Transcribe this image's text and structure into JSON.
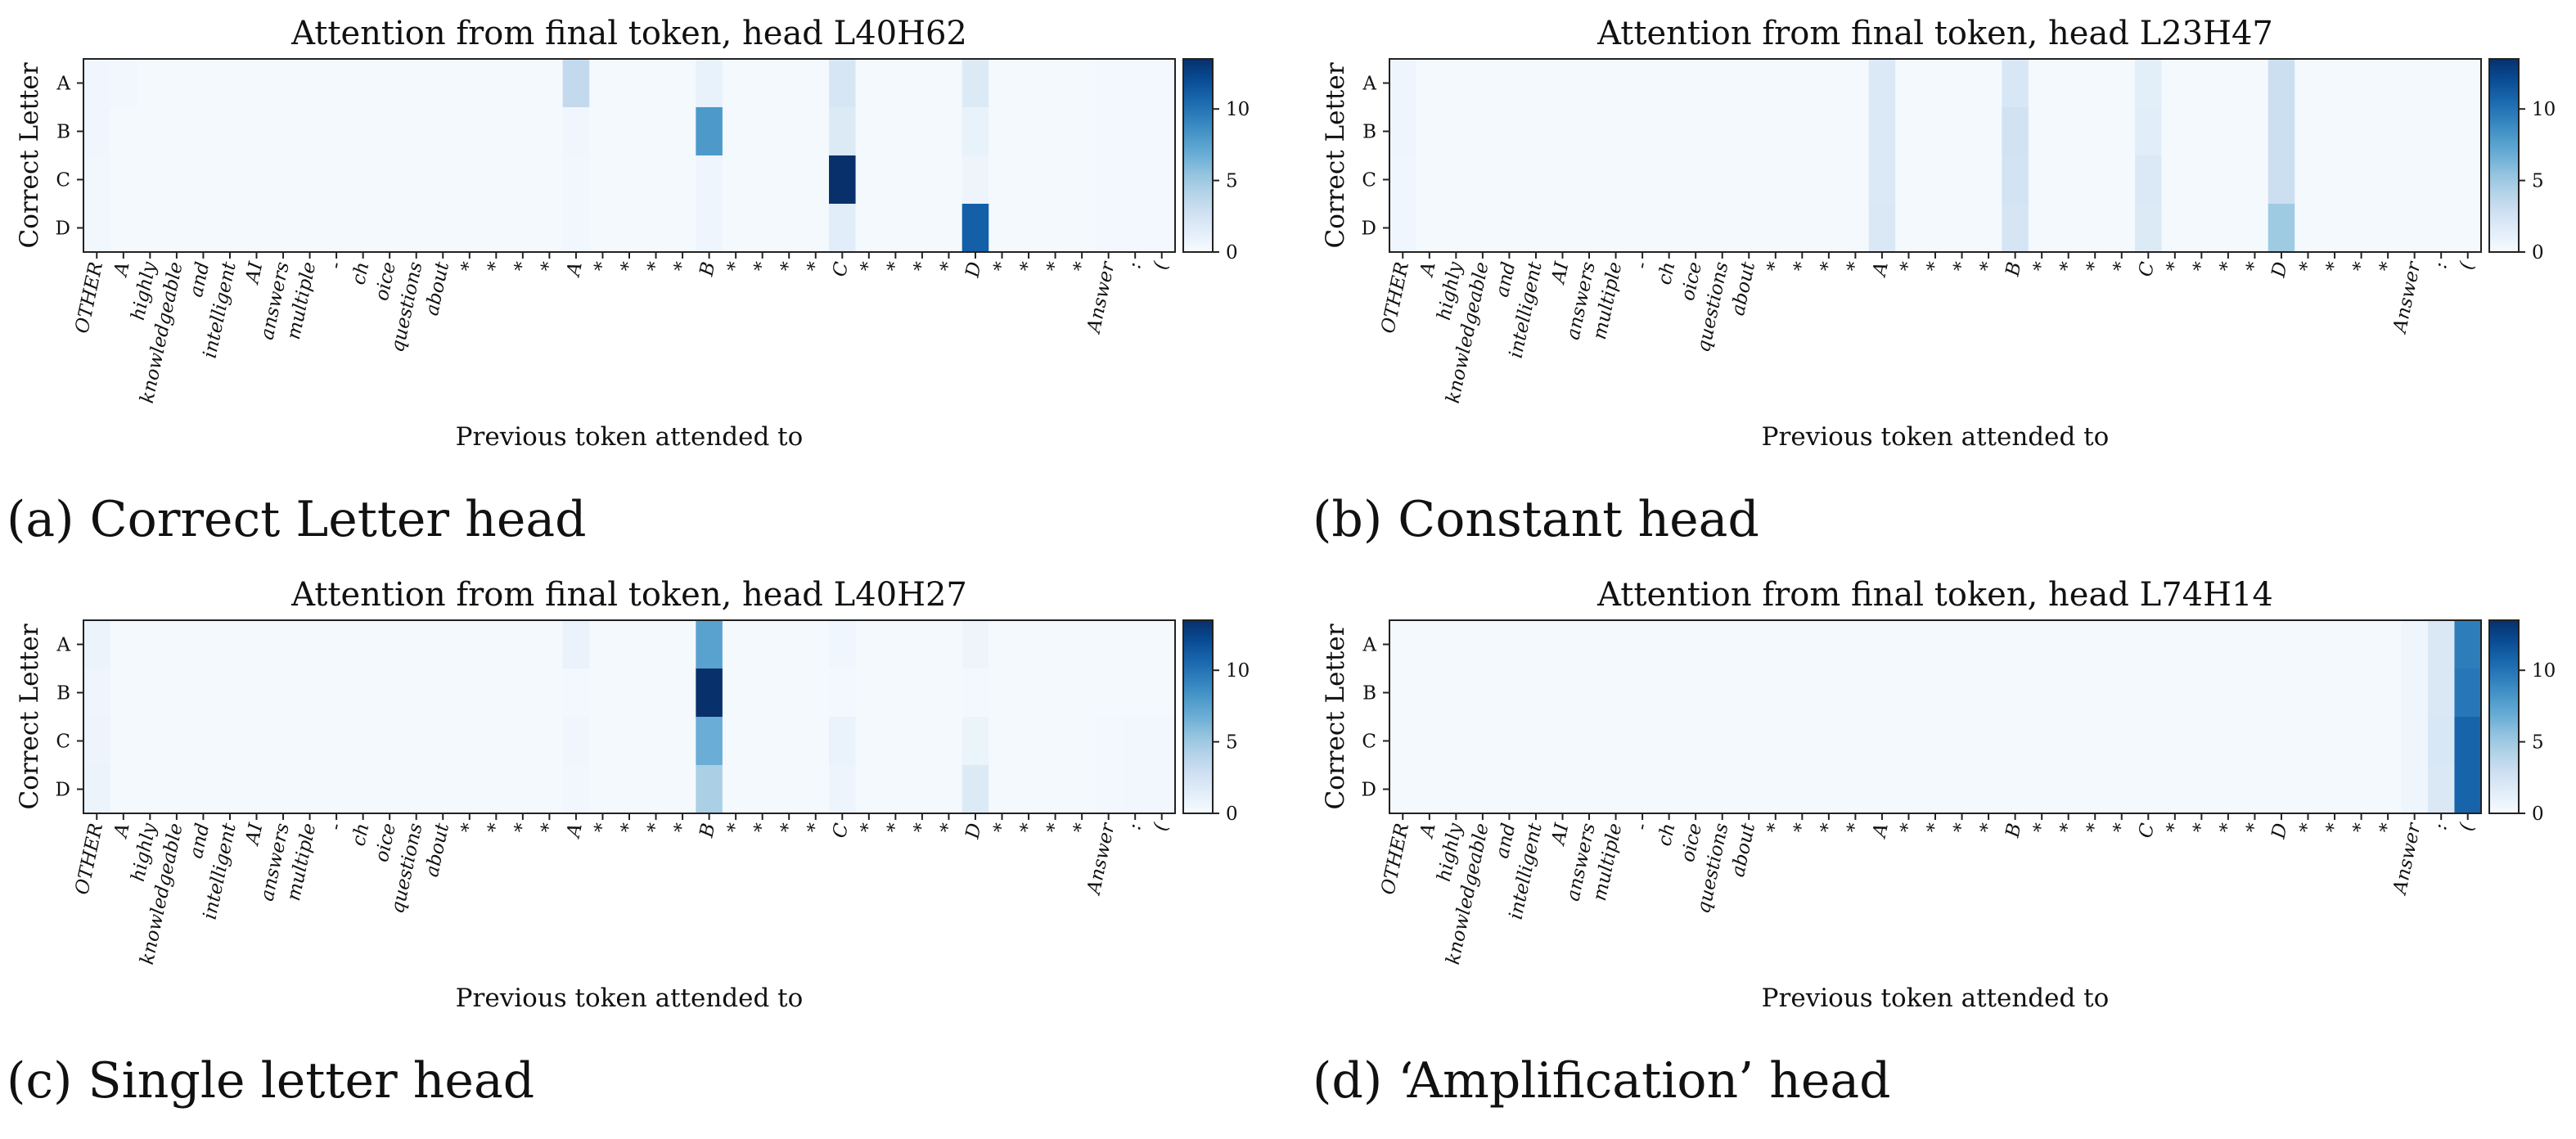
{
  "figure": {
    "panels": [
      {
        "caption": "(a) Correct Letter head",
        "chart_data": {
          "type": "heatmap",
          "title": "Attention from final token, head L40H62",
          "xlabel": "Previous token attended to",
          "ylabel": "Correct Letter",
          "x_tokens": [
            "OTHER",
            "A",
            "highly",
            "knowledgeable",
            "and",
            "intelligent",
            "AI",
            "answers",
            "multiple",
            "-",
            "ch",
            "oice",
            "questions",
            "about",
            "*",
            "*",
            "*",
            "*",
            "A",
            "*",
            "*",
            "*",
            "*",
            "B",
            "*",
            "*",
            "*",
            "*",
            "C",
            "*",
            "*",
            "*",
            "*",
            "D",
            "*",
            "*",
            "*",
            "*",
            "Answer",
            ":",
            "("
          ],
          "y_categories": [
            "A",
            "B",
            "C",
            "D"
          ],
          "colorbar": {
            "ticks": [
              0,
              5,
              10
            ],
            "vmin": 0,
            "vmax": 13.5,
            "colormap": "Blues"
          },
          "values": [
            [
              0.5,
              0.4,
              0.2,
              0.2,
              0.2,
              0.2,
              0.2,
              0.2,
              0.2,
              0.2,
              0.2,
              0.2,
              0.2,
              0.2,
              0.2,
              0.2,
              0.2,
              0.2,
              3.5,
              0.2,
              0.2,
              0.2,
              0.2,
              1.0,
              0.2,
              0.2,
              0.2,
              0.2,
              2.2,
              0.2,
              0.2,
              0.2,
              0.2,
              1.8,
              0.2,
              0.2,
              0.2,
              0.2,
              0.3,
              0.3,
              0.3
            ],
            [
              0.5,
              0.2,
              0.2,
              0.2,
              0.2,
              0.2,
              0.2,
              0.2,
              0.2,
              0.2,
              0.2,
              0.2,
              0.2,
              0.2,
              0.2,
              0.2,
              0.2,
              0.2,
              0.5,
              0.2,
              0.2,
              0.2,
              0.2,
              8.0,
              0.2,
              0.2,
              0.2,
              0.2,
              1.8,
              0.2,
              0.2,
              0.2,
              0.2,
              1.0,
              0.2,
              0.2,
              0.2,
              0.2,
              0.3,
              0.3,
              0.3
            ],
            [
              0.4,
              0.2,
              0.2,
              0.2,
              0.2,
              0.2,
              0.2,
              0.2,
              0.2,
              0.2,
              0.2,
              0.2,
              0.2,
              0.2,
              0.2,
              0.2,
              0.2,
              0.2,
              0.4,
              0.2,
              0.2,
              0.2,
              0.2,
              0.6,
              0.2,
              0.2,
              0.2,
              0.2,
              13.5,
              0.2,
              0.2,
              0.2,
              0.2,
              0.7,
              0.2,
              0.2,
              0.2,
              0.2,
              0.3,
              0.3,
              0.3
            ],
            [
              0.4,
              0.2,
              0.2,
              0.2,
              0.2,
              0.2,
              0.2,
              0.2,
              0.2,
              0.2,
              0.2,
              0.2,
              0.2,
              0.2,
              0.2,
              0.2,
              0.2,
              0.2,
              0.4,
              0.2,
              0.2,
              0.2,
              0.2,
              0.6,
              0.2,
              0.2,
              0.2,
              0.2,
              1.5,
              0.2,
              0.2,
              0.2,
              0.2,
              11.0,
              0.2,
              0.2,
              0.2,
              0.2,
              0.3,
              0.3,
              0.3
            ]
          ]
        }
      },
      {
        "caption": "(b) Constant head",
        "chart_data": {
          "type": "heatmap",
          "title": "Attention from final token, head L23H47",
          "xlabel": "Previous token attended to",
          "ylabel": "Correct Letter",
          "x_tokens": [
            "OTHER",
            "A",
            "highly",
            "knowledgeable",
            "and",
            "intelligent",
            "AI",
            "answers",
            "multiple",
            "-",
            "ch",
            "oice",
            "questions",
            "about",
            "*",
            "*",
            "*",
            "*",
            "A",
            "*",
            "*",
            "*",
            "*",
            "B",
            "*",
            "*",
            "*",
            "*",
            "C",
            "*",
            "*",
            "*",
            "*",
            "D",
            "*",
            "*",
            "*",
            "*",
            "Answer",
            ":",
            "("
          ],
          "y_categories": [
            "A",
            "B",
            "C",
            "D"
          ],
          "colorbar": {
            "ticks": [
              0,
              5,
              10
            ],
            "vmin": 0,
            "vmax": 13.5,
            "colormap": "Blues"
          },
          "values": [
            [
              0.6,
              0.2,
              0.2,
              0.2,
              0.2,
              0.2,
              0.2,
              0.2,
              0.2,
              0.2,
              0.2,
              0.2,
              0.2,
              0.2,
              0.2,
              0.2,
              0.2,
              0.2,
              1.9,
              0.2,
              0.2,
              0.2,
              0.2,
              2.1,
              0.2,
              0.2,
              0.2,
              0.2,
              1.4,
              0.2,
              0.2,
              0.2,
              0.2,
              3.0,
              0.2,
              0.2,
              0.2,
              0.2,
              0.2,
              0.2,
              0.2
            ],
            [
              0.6,
              0.2,
              0.2,
              0.2,
              0.2,
              0.2,
              0.2,
              0.2,
              0.2,
              0.2,
              0.2,
              0.2,
              0.2,
              0.2,
              0.2,
              0.2,
              0.2,
              0.2,
              1.9,
              0.2,
              0.2,
              0.2,
              0.2,
              2.6,
              0.2,
              0.2,
              0.2,
              0.2,
              1.5,
              0.2,
              0.2,
              0.2,
              0.2,
              3.0,
              0.2,
              0.2,
              0.2,
              0.2,
              0.2,
              0.2,
              0.2
            ],
            [
              0.5,
              0.2,
              0.2,
              0.2,
              0.2,
              0.2,
              0.2,
              0.2,
              0.2,
              0.2,
              0.2,
              0.2,
              0.2,
              0.2,
              0.2,
              0.2,
              0.2,
              0.2,
              1.9,
              0.2,
              0.2,
              0.2,
              0.2,
              2.5,
              0.2,
              0.2,
              0.2,
              0.2,
              1.9,
              0.2,
              0.2,
              0.2,
              0.2,
              3.0,
              0.2,
              0.2,
              0.2,
              0.2,
              0.2,
              0.2,
              0.2
            ],
            [
              0.5,
              0.2,
              0.2,
              0.2,
              0.2,
              0.2,
              0.2,
              0.2,
              0.2,
              0.2,
              0.2,
              0.2,
              0.2,
              0.2,
              0.2,
              0.2,
              0.2,
              0.2,
              2.0,
              0.2,
              0.2,
              0.2,
              0.2,
              2.3,
              0.2,
              0.2,
              0.2,
              0.2,
              1.8,
              0.2,
              0.2,
              0.2,
              0.2,
              5.0,
              0.2,
              0.2,
              0.2,
              0.2,
              0.2,
              0.2,
              0.2
            ]
          ]
        }
      },
      {
        "caption": "(c) Single letter head",
        "chart_data": {
          "type": "heatmap",
          "title": "Attention from final token, head L40H27",
          "xlabel": "Previous token attended to",
          "ylabel": "Correct Letter",
          "x_tokens": [
            "OTHER",
            "A",
            "highly",
            "knowledgeable",
            "and",
            "intelligent",
            "AI",
            "answers",
            "multiple",
            "-",
            "ch",
            "oice",
            "questions",
            "about",
            "*",
            "*",
            "*",
            "*",
            "A",
            "*",
            "*",
            "*",
            "*",
            "B",
            "*",
            "*",
            "*",
            "*",
            "C",
            "*",
            "*",
            "*",
            "*",
            "D",
            "*",
            "*",
            "*",
            "*",
            "Answer",
            ":",
            "("
          ],
          "y_categories": [
            "A",
            "B",
            "C",
            "D"
          ],
          "colorbar": {
            "ticks": [
              0,
              5,
              10
            ],
            "vmin": 0,
            "vmax": 13.5,
            "colormap": "Blues"
          },
          "values": [
            [
              0.8,
              0.2,
              0.2,
              0.2,
              0.2,
              0.2,
              0.2,
              0.2,
              0.2,
              0.2,
              0.2,
              0.2,
              0.2,
              0.2,
              0.2,
              0.2,
              0.2,
              0.2,
              0.9,
              0.2,
              0.2,
              0.2,
              0.2,
              7.5,
              0.2,
              0.2,
              0.2,
              0.2,
              0.5,
              0.2,
              0.2,
              0.2,
              0.2,
              0.7,
              0.2,
              0.2,
              0.2,
              0.2,
              0.2,
              0.2,
              0.2
            ],
            [
              0.6,
              0.2,
              0.2,
              0.2,
              0.2,
              0.2,
              0.2,
              0.2,
              0.2,
              0.2,
              0.2,
              0.2,
              0.2,
              0.2,
              0.2,
              0.2,
              0.2,
              0.2,
              0.3,
              0.2,
              0.2,
              0.2,
              0.2,
              13.5,
              0.2,
              0.2,
              0.2,
              0.2,
              0.3,
              0.2,
              0.2,
              0.2,
              0.2,
              0.3,
              0.2,
              0.2,
              0.2,
              0.2,
              0.2,
              0.2,
              0.2
            ],
            [
              0.7,
              0.2,
              0.2,
              0.2,
              0.2,
              0.2,
              0.2,
              0.2,
              0.2,
              0.2,
              0.2,
              0.2,
              0.2,
              0.2,
              0.2,
              0.2,
              0.2,
              0.2,
              0.5,
              0.2,
              0.2,
              0.2,
              0.2,
              6.8,
              0.2,
              0.2,
              0.2,
              0.2,
              0.9,
              0.2,
              0.2,
              0.2,
              0.2,
              0.8,
              0.2,
              0.2,
              0.2,
              0.2,
              0.3,
              0.4,
              0.4
            ],
            [
              0.8,
              0.2,
              0.2,
              0.2,
              0.2,
              0.2,
              0.2,
              0.2,
              0.2,
              0.2,
              0.2,
              0.2,
              0.2,
              0.2,
              0.2,
              0.2,
              0.2,
              0.2,
              0.4,
              0.2,
              0.2,
              0.2,
              0.2,
              4.5,
              0.2,
              0.2,
              0.2,
              0.2,
              0.7,
              0.2,
              0.2,
              0.2,
              0.2,
              1.8,
              0.2,
              0.2,
              0.2,
              0.2,
              0.3,
              0.4,
              0.4
            ]
          ]
        }
      },
      {
        "caption": "(d) ‘Amplification’ head",
        "chart_data": {
          "type": "heatmap",
          "title": "Attention from final token, head L74H14",
          "xlabel": "Previous token attended to",
          "ylabel": "Correct Letter",
          "x_tokens": [
            "OTHER",
            "A",
            "highly",
            "knowledgeable",
            "and",
            "intelligent",
            "AI",
            "answers",
            "multiple",
            "-",
            "ch",
            "oice",
            "questions",
            "about",
            "*",
            "*",
            "*",
            "*",
            "A",
            "*",
            "*",
            "*",
            "*",
            "B",
            "*",
            "*",
            "*",
            "*",
            "C",
            "*",
            "*",
            "*",
            "*",
            "D",
            "*",
            "*",
            "*",
            "*",
            "Answer",
            ":",
            "("
          ],
          "y_categories": [
            "A",
            "B",
            "C",
            "D"
          ],
          "colorbar": {
            "ticks": [
              0,
              5,
              10
            ],
            "vmin": 0,
            "vmax": 13.5,
            "colormap": "Blues"
          },
          "values": [
            [
              0.2,
              0.2,
              0.2,
              0.2,
              0.2,
              0.2,
              0.2,
              0.2,
              0.2,
              0.2,
              0.2,
              0.2,
              0.2,
              0.2,
              0.2,
              0.2,
              0.2,
              0.2,
              0.2,
              0.2,
              0.2,
              0.2,
              0.2,
              0.2,
              0.2,
              0.2,
              0.2,
              0.2,
              0.2,
              0.2,
              0.2,
              0.2,
              0.2,
              0.2,
              0.2,
              0.2,
              0.2,
              0.2,
              0.6,
              2.0,
              9.5
            ],
            [
              0.2,
              0.2,
              0.2,
              0.2,
              0.2,
              0.2,
              0.2,
              0.2,
              0.2,
              0.2,
              0.2,
              0.2,
              0.2,
              0.2,
              0.2,
              0.2,
              0.2,
              0.2,
              0.2,
              0.2,
              0.2,
              0.2,
              0.2,
              0.2,
              0.2,
              0.2,
              0.2,
              0.2,
              0.2,
              0.2,
              0.2,
              0.2,
              0.2,
              0.2,
              0.2,
              0.2,
              0.2,
              0.2,
              0.6,
              2.0,
              9.8
            ],
            [
              0.2,
              0.2,
              0.2,
              0.2,
              0.2,
              0.2,
              0.2,
              0.2,
              0.2,
              0.2,
              0.2,
              0.2,
              0.2,
              0.2,
              0.2,
              0.2,
              0.2,
              0.2,
              0.2,
              0.2,
              0.2,
              0.2,
              0.2,
              0.2,
              0.2,
              0.2,
              0.2,
              0.2,
              0.2,
              0.2,
              0.2,
              0.2,
              0.2,
              0.2,
              0.2,
              0.2,
              0.2,
              0.2,
              0.6,
              2.1,
              10.8
            ],
            [
              0.2,
              0.2,
              0.2,
              0.2,
              0.2,
              0.2,
              0.2,
              0.2,
              0.2,
              0.2,
              0.2,
              0.2,
              0.2,
              0.2,
              0.2,
              0.2,
              0.2,
              0.2,
              0.2,
              0.2,
              0.2,
              0.2,
              0.2,
              0.2,
              0.2,
              0.2,
              0.2,
              0.2,
              0.2,
              0.2,
              0.2,
              0.2,
              0.2,
              0.2,
              0.2,
              0.2,
              0.2,
              0.2,
              0.6,
              2.0,
              10.8
            ]
          ]
        }
      }
    ]
  }
}
